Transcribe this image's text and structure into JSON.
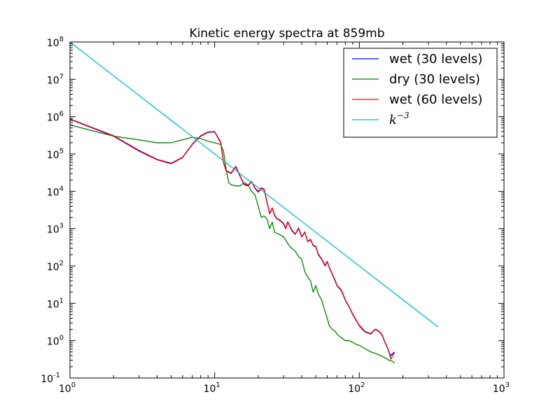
{
  "chart_data": {
    "type": "line",
    "title": "Kinetic energy spectra at 859mb",
    "xlabel": "",
    "ylabel": "",
    "xscale": "log",
    "yscale": "log",
    "xlim": [
      1,
      1000
    ],
    "ylim": [
      0.1,
      100000000
    ],
    "grid": false,
    "legend_position": "top-right",
    "x_ticks": [
      {
        "base": "10",
        "exp": "0"
      },
      {
        "base": "10",
        "exp": "1"
      },
      {
        "base": "10",
        "exp": "2"
      },
      {
        "base": "10",
        "exp": "3"
      }
    ],
    "y_ticks": [
      {
        "base": "10",
        "exp": "-1"
      },
      {
        "base": "10",
        "exp": "0"
      },
      {
        "base": "10",
        "exp": "1"
      },
      {
        "base": "10",
        "exp": "2"
      },
      {
        "base": "10",
        "exp": "3"
      },
      {
        "base": "10",
        "exp": "4"
      },
      {
        "base": "10",
        "exp": "5"
      },
      {
        "base": "10",
        "exp": "6"
      },
      {
        "base": "10",
        "exp": "7"
      },
      {
        "base": "10",
        "exp": "8"
      }
    ],
    "series": [
      {
        "name": "wet (30 levels)",
        "color": "#0000ff",
        "points": [
          [
            1,
            850000
          ],
          [
            2,
            300000
          ],
          [
            3,
            120000
          ],
          [
            4,
            70000
          ],
          [
            5,
            55000
          ],
          [
            6,
            80000
          ],
          [
            7,
            180000
          ],
          [
            8,
            300000
          ],
          [
            9,
            380000
          ],
          [
            10,
            390000
          ],
          [
            11,
            200000
          ],
          [
            11.5,
            60000
          ],
          [
            12,
            35000
          ],
          [
            13,
            30000
          ],
          [
            14,
            45000
          ],
          [
            15,
            25000
          ],
          [
            16,
            15000
          ],
          [
            17,
            14000
          ],
          [
            18,
            18000
          ],
          [
            19,
            12000
          ],
          [
            20,
            9500
          ],
          [
            21,
            12000
          ],
          [
            22,
            11000
          ],
          [
            23,
            5000
          ],
          [
            24,
            2500
          ],
          [
            25,
            3500
          ],
          [
            26,
            2200
          ],
          [
            27,
            1800
          ],
          [
            28,
            1700
          ],
          [
            29,
            1500
          ],
          [
            30,
            1300
          ],
          [
            31,
            1000
          ],
          [
            32,
            1500
          ],
          [
            34,
            900
          ],
          [
            36,
            700
          ],
          [
            38,
            1000
          ],
          [
            40,
            600
          ],
          [
            42,
            800
          ],
          [
            44,
            450
          ],
          [
            46,
            500
          ],
          [
            48,
            350
          ],
          [
            50,
            330
          ],
          [
            52,
            200
          ],
          [
            55,
            150
          ],
          [
            58,
            100
          ],
          [
            60,
            130
          ],
          [
            62,
            90
          ],
          [
            65,
            60
          ],
          [
            68,
            40
          ],
          [
            70,
            30
          ],
          [
            75,
            22
          ],
          [
            80,
            12
          ],
          [
            85,
            8
          ],
          [
            90,
            5
          ],
          [
            95,
            3.5
          ],
          [
            100,
            2.5
          ],
          [
            105,
            2
          ],
          [
            110,
            1.7
          ],
          [
            115,
            1.6
          ],
          [
            120,
            1.5
          ],
          [
            125,
            1.8
          ],
          [
            130,
            2
          ],
          [
            135,
            1.8
          ],
          [
            140,
            1.6
          ],
          [
            145,
            1.3
          ],
          [
            150,
            0.9
          ],
          [
            155,
            0.7
          ],
          [
            160,
            0.5
          ],
          [
            165,
            0.4
          ],
          [
            170,
            0.45
          ],
          [
            175,
            0.5
          ]
        ]
      },
      {
        "name": "dry (30 levels)",
        "color": "#008000",
        "points": [
          [
            1,
            600000
          ],
          [
            2,
            300000
          ],
          [
            3,
            240000
          ],
          [
            4,
            200000
          ],
          [
            5,
            200000
          ],
          [
            6,
            240000
          ],
          [
            7,
            280000
          ],
          [
            8,
            260000
          ],
          [
            9,
            220000
          ],
          [
            10,
            200000
          ],
          [
            11,
            180000
          ],
          [
            11.5,
            120000
          ],
          [
            12,
            40000
          ],
          [
            12.5,
            17000
          ],
          [
            13,
            15000
          ],
          [
            14,
            14000
          ],
          [
            15,
            14000
          ],
          [
            16,
            17000
          ],
          [
            17,
            15000
          ],
          [
            18,
            10000
          ],
          [
            19,
            8000
          ],
          [
            20,
            4000
          ],
          [
            21,
            2000
          ],
          [
            22,
            2200
          ],
          [
            23,
            1800
          ],
          [
            24,
            1000
          ],
          [
            25,
            1500
          ],
          [
            26,
            800
          ],
          [
            28,
            700
          ],
          [
            30,
            600
          ],
          [
            32,
            400
          ],
          [
            34,
            300
          ],
          [
            36,
            250
          ],
          [
            38,
            180
          ],
          [
            40,
            150
          ],
          [
            42,
            70
          ],
          [
            44,
            50
          ],
          [
            46,
            40
          ],
          [
            48,
            20
          ],
          [
            50,
            30
          ],
          [
            52,
            18
          ],
          [
            55,
            12
          ],
          [
            58,
            6
          ],
          [
            60,
            4
          ],
          [
            62,
            2.5
          ],
          [
            65,
            2
          ],
          [
            68,
            1.8
          ],
          [
            70,
            1.5
          ],
          [
            75,
            1.2
          ],
          [
            80,
            1
          ],
          [
            85,
            1
          ],
          [
            90,
            0.9
          ],
          [
            95,
            0.8
          ],
          [
            100,
            0.75
          ],
          [
            110,
            0.6
          ],
          [
            120,
            0.5
          ],
          [
            130,
            0.45
          ],
          [
            140,
            0.4
          ],
          [
            150,
            0.35
          ],
          [
            160,
            0.3
          ],
          [
            170,
            0.28
          ],
          [
            175,
            0.25
          ]
        ]
      },
      {
        "name": "wet (60 levels)",
        "color": "#ff0000",
        "points": [
          [
            1,
            870000
          ],
          [
            2,
            310000
          ],
          [
            3,
            125000
          ],
          [
            4,
            72000
          ],
          [
            5,
            57000
          ],
          [
            6,
            82000
          ],
          [
            7,
            185000
          ],
          [
            8,
            310000
          ],
          [
            9,
            390000
          ],
          [
            10,
            400000
          ],
          [
            11,
            210000
          ],
          [
            11.5,
            62000
          ],
          [
            12,
            36000
          ],
          [
            13,
            31000
          ],
          [
            14,
            47000
          ],
          [
            15,
            26000
          ],
          [
            16,
            15500
          ],
          [
            17,
            14500
          ],
          [
            18,
            18500
          ],
          [
            19,
            12500
          ],
          [
            20,
            10000
          ],
          [
            21,
            12500
          ],
          [
            22,
            11500
          ],
          [
            23,
            5200
          ],
          [
            24,
            2600
          ],
          [
            25,
            3600
          ],
          [
            26,
            2300
          ],
          [
            27,
            1850
          ],
          [
            28,
            1750
          ],
          [
            29,
            1550
          ],
          [
            30,
            1350
          ],
          [
            31,
            1050
          ],
          [
            32,
            1550
          ],
          [
            34,
            950
          ],
          [
            36,
            720
          ],
          [
            38,
            1050
          ],
          [
            40,
            620
          ],
          [
            42,
            820
          ],
          [
            44,
            460
          ],
          [
            46,
            520
          ],
          [
            48,
            360
          ],
          [
            50,
            340
          ],
          [
            52,
            210
          ],
          [
            55,
            155
          ],
          [
            58,
            105
          ],
          [
            60,
            135
          ],
          [
            62,
            92
          ],
          [
            65,
            62
          ],
          [
            68,
            42
          ],
          [
            70,
            31
          ],
          [
            75,
            23
          ],
          [
            80,
            12.5
          ],
          [
            85,
            8.2
          ],
          [
            90,
            5.2
          ],
          [
            95,
            3.6
          ],
          [
            100,
            2.6
          ],
          [
            105,
            2.1
          ],
          [
            110,
            1.75
          ],
          [
            115,
            1.65
          ],
          [
            120,
            1.55
          ],
          [
            125,
            1.85
          ],
          [
            130,
            2.05
          ],
          [
            135,
            1.85
          ],
          [
            140,
            1.65
          ],
          [
            145,
            1.35
          ],
          [
            150,
            0.92
          ],
          [
            155,
            0.72
          ],
          [
            160,
            0.52
          ],
          [
            165,
            0.32
          ],
          [
            170,
            0.4
          ],
          [
            175,
            0.48
          ]
        ]
      },
      {
        "name": "k^-3",
        "label_base": "k",
        "label_exp": "−3",
        "color": "#00bfbf",
        "points": [
          [
            1,
            100000000
          ],
          [
            350,
            2.33
          ]
        ]
      }
    ]
  }
}
